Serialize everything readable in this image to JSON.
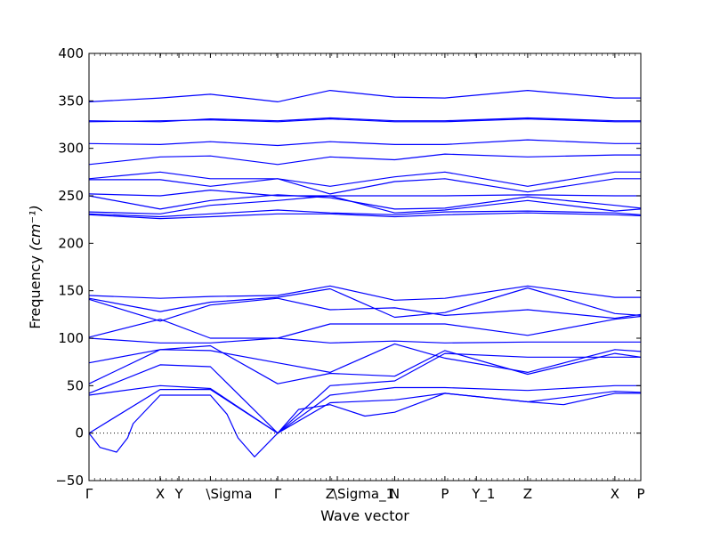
{
  "chart_data": {
    "type": "line",
    "xlabel": "Wave vector",
    "ylabel": "Frequency",
    "ylabel_unit": "(cm⁻¹)",
    "ylim": [
      -50,
      400
    ],
    "yticks": [
      -50,
      0,
      50,
      100,
      150,
      200,
      250,
      300,
      350,
      400
    ],
    "grid": false,
    "line_color": "#0000ff",
    "zero_line_color": "#000000",
    "xlim": [
      0,
      1
    ],
    "x_ticks": [
      {
        "label": "Γ",
        "x": 0.0
      },
      {
        "label": "X",
        "x": 0.129
      },
      {
        "label": "Y",
        "x": 0.163
      },
      {
        "label": "\\Sigma",
        "x": 0.22
      },
      {
        "label": "Γ",
        "x": 0.342
      },
      {
        "label": "Z",
        "x": 0.437
      },
      {
        "label": "\\Sigma_1",
        "x": 0.45
      },
      {
        "label": "N",
        "x": 0.554
      },
      {
        "label": "P",
        "x": 0.645
      },
      {
        "label": "Y_1",
        "x": 0.702
      },
      {
        "label": "Z",
        "x": 0.795
      },
      {
        "label": "X",
        "x": 0.953
      },
      {
        "label": "P",
        "x": 1.0
      }
    ],
    "series": [
      {
        "values": [
          [
            0,
            349
          ],
          [
            0.129,
            353
          ],
          [
            0.22,
            357
          ],
          [
            0.342,
            349
          ],
          [
            0.437,
            361
          ],
          [
            0.554,
            354
          ],
          [
            0.645,
            353
          ],
          [
            0.795,
            361
          ],
          [
            0.953,
            353
          ],
          [
            1,
            353
          ]
        ]
      },
      {
        "values": [
          [
            0,
            329
          ],
          [
            0.129,
            328
          ],
          [
            0.22,
            331
          ],
          [
            0.342,
            329
          ],
          [
            0.437,
            332
          ],
          [
            0.554,
            329
          ],
          [
            0.645,
            329
          ],
          [
            0.795,
            332
          ],
          [
            0.953,
            329
          ],
          [
            1,
            329
          ]
        ]
      },
      {
        "values": [
          [
            0,
            328
          ],
          [
            0.129,
            329
          ],
          [
            0.22,
            330
          ],
          [
            0.342,
            328
          ],
          [
            0.437,
            331
          ],
          [
            0.554,
            328
          ],
          [
            0.645,
            328
          ],
          [
            0.795,
            331
          ],
          [
            0.953,
            328
          ],
          [
            1,
            328
          ]
        ]
      },
      {
        "values": [
          [
            0,
            305
          ],
          [
            0.129,
            304
          ],
          [
            0.22,
            307
          ],
          [
            0.342,
            303
          ],
          [
            0.437,
            307
          ],
          [
            0.554,
            304
          ],
          [
            0.645,
            304
          ],
          [
            0.795,
            309
          ],
          [
            0.953,
            305
          ],
          [
            1,
            305
          ]
        ]
      },
      {
        "values": [
          [
            0,
            283
          ],
          [
            0.129,
            291
          ],
          [
            0.22,
            292
          ],
          [
            0.342,
            283
          ],
          [
            0.437,
            291
          ],
          [
            0.554,
            288
          ],
          [
            0.645,
            294
          ],
          [
            0.795,
            291
          ],
          [
            0.953,
            293
          ],
          [
            1,
            293
          ]
        ]
      },
      {
        "values": [
          [
            0,
            268
          ],
          [
            0.129,
            275
          ],
          [
            0.22,
            268
          ],
          [
            0.342,
            268
          ],
          [
            0.437,
            260
          ],
          [
            0.554,
            270
          ],
          [
            0.645,
            275
          ],
          [
            0.795,
            260
          ],
          [
            0.953,
            275
          ],
          [
            1,
            275
          ]
        ]
      },
      {
        "values": [
          [
            0,
            267
          ],
          [
            0.129,
            267
          ],
          [
            0.22,
            260
          ],
          [
            0.342,
            268
          ],
          [
            0.437,
            252
          ],
          [
            0.554,
            265
          ],
          [
            0.645,
            268
          ],
          [
            0.795,
            254
          ],
          [
            0.953,
            268
          ],
          [
            1,
            268
          ]
        ]
      },
      {
        "values": [
          [
            0,
            252
          ],
          [
            0.129,
            250
          ],
          [
            0.22,
            256
          ],
          [
            0.342,
            250
          ],
          [
            0.437,
            250
          ],
          [
            0.554,
            250
          ],
          [
            0.645,
            250
          ],
          [
            0.795,
            251
          ],
          [
            0.953,
            250
          ],
          [
            1,
            250
          ]
        ]
      },
      {
        "values": [
          [
            0,
            250
          ],
          [
            0.129,
            236
          ],
          [
            0.22,
            245
          ],
          [
            0.342,
            251
          ],
          [
            0.437,
            248
          ],
          [
            0.554,
            236
          ],
          [
            0.645,
            237
          ],
          [
            0.795,
            249
          ],
          [
            0.953,
            240
          ],
          [
            1,
            237
          ]
        ]
      },
      {
        "values": [
          [
            0,
            233
          ],
          [
            0.129,
            231
          ],
          [
            0.22,
            240
          ],
          [
            0.342,
            245
          ],
          [
            0.437,
            250
          ],
          [
            0.554,
            232
          ],
          [
            0.645,
            235
          ],
          [
            0.795,
            245
          ],
          [
            0.953,
            234
          ],
          [
            1,
            236
          ]
        ]
      },
      {
        "values": [
          [
            0,
            231
          ],
          [
            0.129,
            228
          ],
          [
            0.22,
            231
          ],
          [
            0.342,
            235
          ],
          [
            0.437,
            232
          ],
          [
            0.554,
            230
          ],
          [
            0.645,
            233
          ],
          [
            0.795,
            234
          ],
          [
            0.953,
            232
          ],
          [
            1,
            230
          ]
        ]
      },
      {
        "values": [
          [
            0,
            230
          ],
          [
            0.129,
            226
          ],
          [
            0.22,
            228
          ],
          [
            0.342,
            231
          ],
          [
            0.437,
            231
          ],
          [
            0.554,
            228
          ],
          [
            0.645,
            230
          ],
          [
            0.795,
            232
          ],
          [
            0.953,
            230
          ],
          [
            1,
            229
          ]
        ]
      },
      {
        "values": [
          [
            0,
            145
          ],
          [
            0.129,
            142
          ],
          [
            0.22,
            144
          ],
          [
            0.342,
            145
          ],
          [
            0.437,
            155
          ],
          [
            0.554,
            140
          ],
          [
            0.645,
            142
          ],
          [
            0.795,
            155
          ],
          [
            0.953,
            143
          ],
          [
            1,
            143
          ]
        ]
      },
      {
        "values": [
          [
            0,
            142
          ],
          [
            0.129,
            128
          ],
          [
            0.22,
            138
          ],
          [
            0.342,
            143
          ],
          [
            0.437,
            152
          ],
          [
            0.554,
            122
          ],
          [
            0.645,
            127
          ],
          [
            0.795,
            153
          ],
          [
            0.953,
            126
          ],
          [
            1,
            124
          ]
        ]
      },
      {
        "values": [
          [
            0,
            141
          ],
          [
            0.129,
            118
          ],
          [
            0.22,
            135
          ],
          [
            0.342,
            142
          ],
          [
            0.437,
            130
          ],
          [
            0.554,
            132
          ],
          [
            0.645,
            124
          ],
          [
            0.795,
            130
          ],
          [
            0.953,
            121
          ],
          [
            1,
            125
          ]
        ]
      },
      {
        "values": [
          [
            0,
            101
          ],
          [
            0.129,
            120
          ],
          [
            0.22,
            100
          ],
          [
            0.342,
            100
          ],
          [
            0.437,
            95
          ],
          [
            0.554,
            97
          ],
          [
            0.645,
            95
          ],
          [
            0.795,
            96
          ],
          [
            0.953,
            96
          ],
          [
            1,
            96
          ]
        ]
      },
      {
        "values": [
          [
            0,
            100
          ],
          [
            0.129,
            95
          ],
          [
            0.22,
            95
          ],
          [
            0.342,
            100
          ],
          [
            0.437,
            115
          ],
          [
            0.554,
            115
          ],
          [
            0.645,
            115
          ],
          [
            0.795,
            103
          ],
          [
            0.953,
            120
          ],
          [
            1,
            123
          ]
        ]
      },
      {
        "values": [
          [
            0,
            74
          ],
          [
            0.129,
            88
          ],
          [
            0.22,
            87
          ],
          [
            0.342,
            74
          ],
          [
            0.437,
            64
          ],
          [
            0.554,
            94
          ],
          [
            0.645,
            79
          ],
          [
            0.795,
            64
          ],
          [
            0.953,
            88
          ],
          [
            1,
            86
          ]
        ]
      },
      {
        "values": [
          [
            0,
            52
          ],
          [
            0.129,
            88
          ],
          [
            0.22,
            92
          ],
          [
            0.342,
            52
          ],
          [
            0.437,
            63
          ],
          [
            0.554,
            60
          ],
          [
            0.645,
            87
          ],
          [
            0.795,
            62
          ],
          [
            0.953,
            84
          ],
          [
            1,
            80
          ]
        ]
      },
      {
        "values": [
          [
            0,
            42
          ],
          [
            0.129,
            72
          ],
          [
            0.22,
            70
          ],
          [
            0.342,
            0
          ],
          [
            0.437,
            50
          ],
          [
            0.554,
            55
          ],
          [
            0.645,
            84
          ],
          [
            0.795,
            80
          ],
          [
            0.953,
            80
          ],
          [
            1,
            80
          ]
        ]
      },
      {
        "values": [
          [
            0,
            40
          ],
          [
            0.129,
            50
          ],
          [
            0.22,
            47
          ],
          [
            0.342,
            0
          ],
          [
            0.437,
            40
          ],
          [
            0.554,
            48
          ],
          [
            0.645,
            48
          ],
          [
            0.795,
            45
          ],
          [
            0.953,
            50
          ],
          [
            1,
            50
          ]
        ]
      },
      {
        "values": [
          [
            0,
            0
          ],
          [
            0.129,
            46
          ],
          [
            0.22,
            46
          ],
          [
            0.342,
            0
          ],
          [
            0.437,
            32
          ],
          [
            0.554,
            35
          ],
          [
            0.645,
            42
          ],
          [
            0.795,
            33
          ],
          [
            0.953,
            44
          ],
          [
            1,
            43
          ]
        ]
      },
      {
        "values": [
          [
            0,
            0
          ],
          [
            0.02,
            -15
          ],
          [
            0.05,
            -20
          ],
          [
            0.07,
            -5
          ],
          [
            0.08,
            10
          ],
          [
            0.129,
            40
          ],
          [
            0.22,
            40
          ],
          [
            0.25,
            20
          ],
          [
            0.27,
            -5
          ],
          [
            0.3,
            -25
          ],
          [
            0.342,
            0
          ],
          [
            0.38,
            25
          ],
          [
            0.437,
            30
          ],
          [
            0.5,
            18
          ],
          [
            0.554,
            22
          ],
          [
            0.645,
            42
          ],
          [
            0.795,
            33
          ],
          [
            0.86,
            30
          ],
          [
            0.953,
            42
          ],
          [
            1,
            42
          ]
        ]
      }
    ]
  }
}
